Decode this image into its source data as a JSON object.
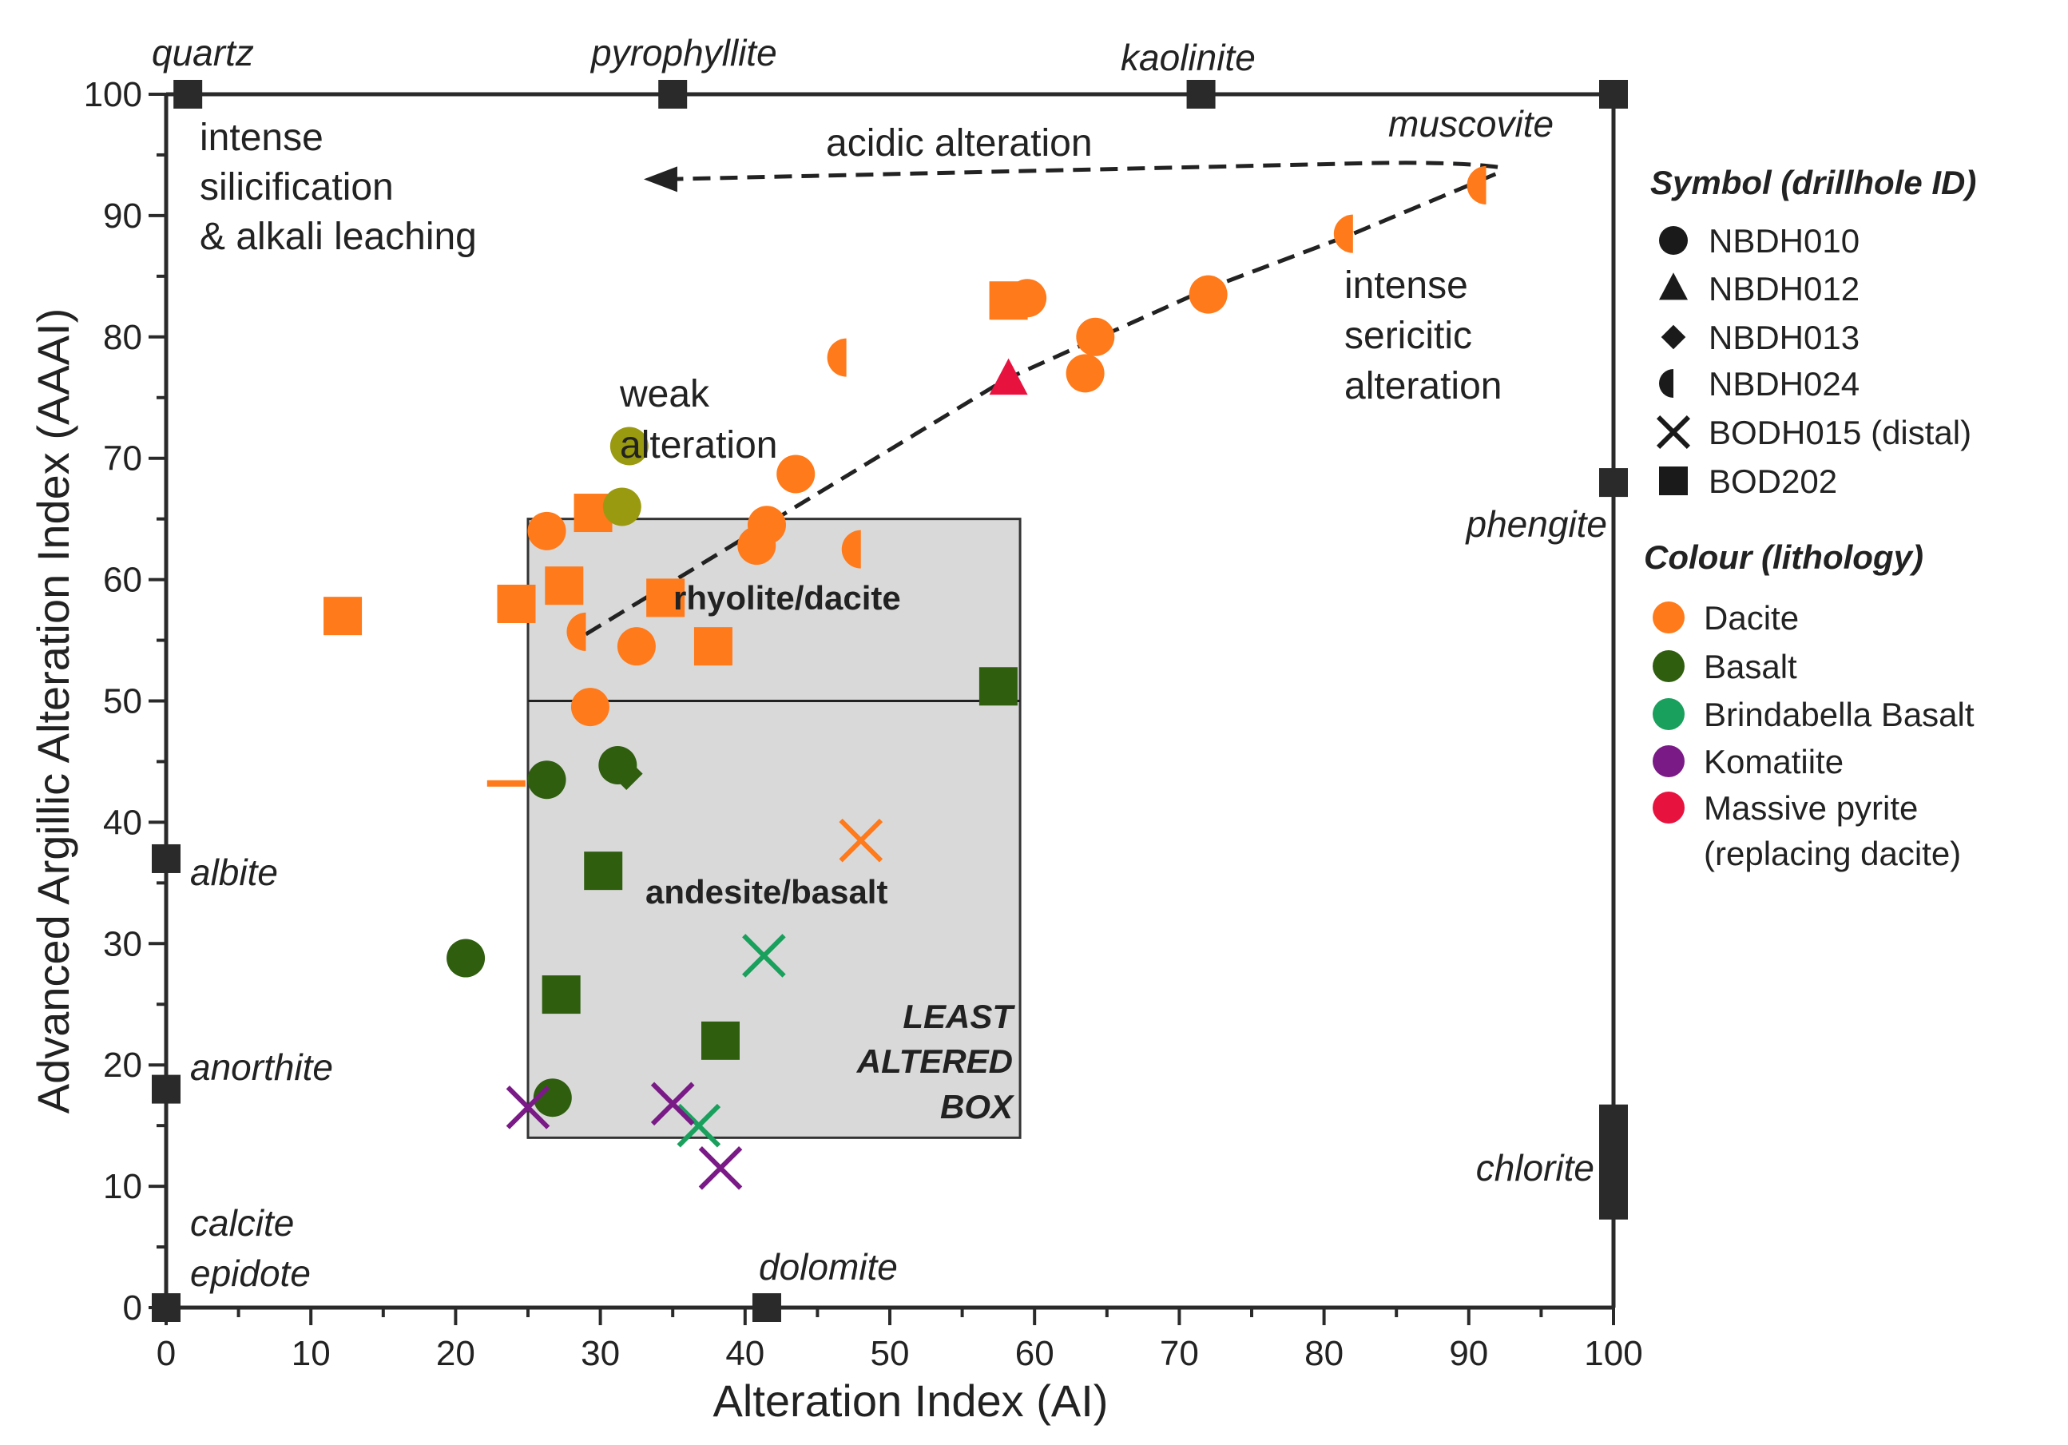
{
  "chart_data": {
    "type": "scatter",
    "xlabel": "Alteration Index (AI)",
    "ylabel": "Advanced Argillic Alteration Index (AAAI)",
    "xlim": [
      0,
      100
    ],
    "ylim": [
      0,
      100
    ],
    "x_ticks": [
      "0",
      "10",
      "20",
      "30",
      "40",
      "50",
      "60",
      "70",
      "80",
      "90",
      "100"
    ],
    "y_ticks": [
      "0",
      "10",
      "20",
      "30",
      "40",
      "50",
      "60",
      "70",
      "80",
      "90",
      "100"
    ],
    "colors": {
      "Dacite": "#ff7a1a",
      "Basalt": "#2f5e0f",
      "Olive": "#9a9a10",
      "Brindabella Basalt": "#19a05c",
      "Komatiite": "#7a1a86",
      "Massive pyrite": "#e8123f",
      "frame": "#2a2a2a",
      "box_fill": "#d9d9d9"
    },
    "least_altered_box": {
      "x": [
        25,
        59
      ],
      "y": [
        14,
        65
      ],
      "divider_y": 50,
      "upper_label": "rhyolite/dacite",
      "lower_label": "andesite/basalt",
      "box_label_lines": [
        "LEAST",
        "ALTERED",
        "BOX"
      ]
    },
    "mineral_markers": [
      {
        "name": "quartz",
        "x": 1.5,
        "y": 100
      },
      {
        "name": "pyrophyllite",
        "x": 35,
        "y": 100
      },
      {
        "name": "kaolinite",
        "x": 71.5,
        "y": 100
      },
      {
        "name": "muscovite",
        "x": 100,
        "y": 100
      },
      {
        "name": "phengite",
        "x": 100,
        "y": 68
      },
      {
        "name": "chlorite",
        "x": 100,
        "y": 12
      },
      {
        "name": "albite",
        "x": 0,
        "y": 37
      },
      {
        "name": "anorthite",
        "x": 0,
        "y": 18
      },
      {
        "name": "calcite epidote",
        "x": 0,
        "y": 0
      },
      {
        "name": "dolomite",
        "x": 41.5,
        "y": 0
      }
    ],
    "mineral_labels": {
      "quartz": "quartz",
      "pyrophyllite": "pyrophyllite",
      "kaolinite": "kaolinite",
      "muscovite": "muscovite",
      "phengite": "phengite",
      "chlorite": "chlorite",
      "albite": "albite",
      "anorthite": "anorthite",
      "calcite": "calcite",
      "epidote": "epidote",
      "dolomite": "dolomite"
    },
    "annotations": {
      "silicification": [
        "intense",
        "silicification",
        "& alkali leaching"
      ],
      "acidic": "acidic alteration",
      "sericitic": [
        "intense",
        "sericitic",
        "alteration"
      ],
      "weak": [
        "weak",
        "alteration"
      ]
    },
    "trend_line": [
      [
        29,
        55.5
      ],
      [
        58,
        76.5
      ],
      [
        72,
        84
      ],
      [
        82,
        88.5
      ],
      [
        92,
        93.5
      ]
    ],
    "acidic_arrow": [
      [
        92,
        94
      ],
      [
        33,
        93
      ]
    ],
    "points": [
      {
        "x": 12.2,
        "y": 57,
        "shape": "square",
        "color": "Dacite"
      },
      {
        "x": 24.2,
        "y": 58,
        "shape": "square",
        "color": "Dacite"
      },
      {
        "x": 23.5,
        "y": 43.2,
        "shape": "dash",
        "color": "Dacite"
      },
      {
        "x": 26.3,
        "y": 64,
        "shape": "circle",
        "color": "Dacite"
      },
      {
        "x": 27.5,
        "y": 59.5,
        "shape": "square",
        "color": "Dacite"
      },
      {
        "x": 29,
        "y": 55.7,
        "shape": "halfcircle",
        "color": "Dacite"
      },
      {
        "x": 29.3,
        "y": 49.5,
        "shape": "circle",
        "color": "Dacite"
      },
      {
        "x": 29.5,
        "y": 65.5,
        "shape": "square",
        "color": "Dacite"
      },
      {
        "x": 32.5,
        "y": 54.5,
        "shape": "circle",
        "color": "Dacite"
      },
      {
        "x": 34.5,
        "y": 58.5,
        "shape": "square",
        "color": "Dacite"
      },
      {
        "x": 37.8,
        "y": 54.5,
        "shape": "square",
        "color": "Dacite"
      },
      {
        "x": 40.8,
        "y": 62.8,
        "shape": "circle",
        "color": "Dacite"
      },
      {
        "x": 41.5,
        "y": 64.5,
        "shape": "circle",
        "color": "Dacite"
      },
      {
        "x": 43.5,
        "y": 68.7,
        "shape": "circle",
        "color": "Dacite"
      },
      {
        "x": 48,
        "y": 62.5,
        "shape": "halfcircle",
        "color": "Dacite"
      },
      {
        "x": 47,
        "y": 78.3,
        "shape": "halfcircle",
        "color": "Dacite"
      },
      {
        "x": 58.2,
        "y": 83,
        "shape": "square",
        "color": "Dacite"
      },
      {
        "x": 59.5,
        "y": 83.2,
        "shape": "circle",
        "color": "Dacite"
      },
      {
        "x": 63.5,
        "y": 77,
        "shape": "circle",
        "color": "Dacite"
      },
      {
        "x": 64.2,
        "y": 80,
        "shape": "circle",
        "color": "Dacite"
      },
      {
        "x": 72,
        "y": 83.5,
        "shape": "circle",
        "color": "Dacite"
      },
      {
        "x": 82,
        "y": 88.5,
        "shape": "halfcircle",
        "color": "Dacite"
      },
      {
        "x": 91.2,
        "y": 92.5,
        "shape": "halfcircle",
        "color": "Dacite"
      },
      {
        "x": 48,
        "y": 38.5,
        "shape": "x",
        "color": "Dacite"
      },
      {
        "x": 58.2,
        "y": 76.5,
        "shape": "triangle",
        "color": "Massive pyrite"
      },
      {
        "x": 32,
        "y": 71,
        "shape": "circle",
        "color": "Olive"
      },
      {
        "x": 31.5,
        "y": 66,
        "shape": "circle",
        "color": "Olive"
      },
      {
        "x": 26.3,
        "y": 43.5,
        "shape": "circle",
        "color": "Basalt"
      },
      {
        "x": 31.2,
        "y": 44.7,
        "shape": "circle",
        "color": "Basalt"
      },
      {
        "x": 31.8,
        "y": 44,
        "shape": "diamond",
        "color": "Basalt"
      },
      {
        "x": 30.2,
        "y": 36,
        "shape": "square",
        "color": "Basalt"
      },
      {
        "x": 20.7,
        "y": 28.8,
        "shape": "circle",
        "color": "Basalt"
      },
      {
        "x": 27.3,
        "y": 25.8,
        "shape": "square",
        "color": "Basalt"
      },
      {
        "x": 26.7,
        "y": 17.3,
        "shape": "circle",
        "color": "Basalt"
      },
      {
        "x": 38.3,
        "y": 22,
        "shape": "square",
        "color": "Basalt"
      },
      {
        "x": 57.5,
        "y": 51.2,
        "shape": "square",
        "color": "Basalt"
      },
      {
        "x": 41.3,
        "y": 29,
        "shape": "x",
        "color": "Brindabella Basalt"
      },
      {
        "x": 36.8,
        "y": 15,
        "shape": "x",
        "color": "Brindabella Basalt"
      },
      {
        "x": 25,
        "y": 16.5,
        "shape": "x",
        "color": "Komatiite"
      },
      {
        "x": 35,
        "y": 16.8,
        "shape": "x",
        "color": "Komatiite"
      },
      {
        "x": 38.3,
        "y": 11.5,
        "shape": "x",
        "color": "Komatiite"
      }
    ],
    "legend": {
      "placement": "right",
      "symbol_title": "Symbol (drillhole ID)",
      "symbols": [
        {
          "shape": "circle",
          "label": "NBDH010"
        },
        {
          "shape": "triangle",
          "label": "NBDH012"
        },
        {
          "shape": "diamond",
          "label": "NBDH013"
        },
        {
          "shape": "halfcircle",
          "label": "NBDH024"
        },
        {
          "shape": "x",
          "label": "BODH015 (distal)"
        },
        {
          "shape": "square",
          "label": "BOD202"
        }
      ],
      "colour_title": "Colour (lithology)",
      "colours": [
        {
          "color": "Dacite",
          "label": "Dacite"
        },
        {
          "color": "Basalt",
          "label": "Basalt"
        },
        {
          "color": "Brindabella Basalt",
          "label": "Brindabella Basalt"
        },
        {
          "color": "Komatiite",
          "label": "Komatiite"
        },
        {
          "color": "Massive pyrite",
          "label": "Massive pyrite",
          "label2": "(replacing dacite)"
        }
      ]
    }
  }
}
